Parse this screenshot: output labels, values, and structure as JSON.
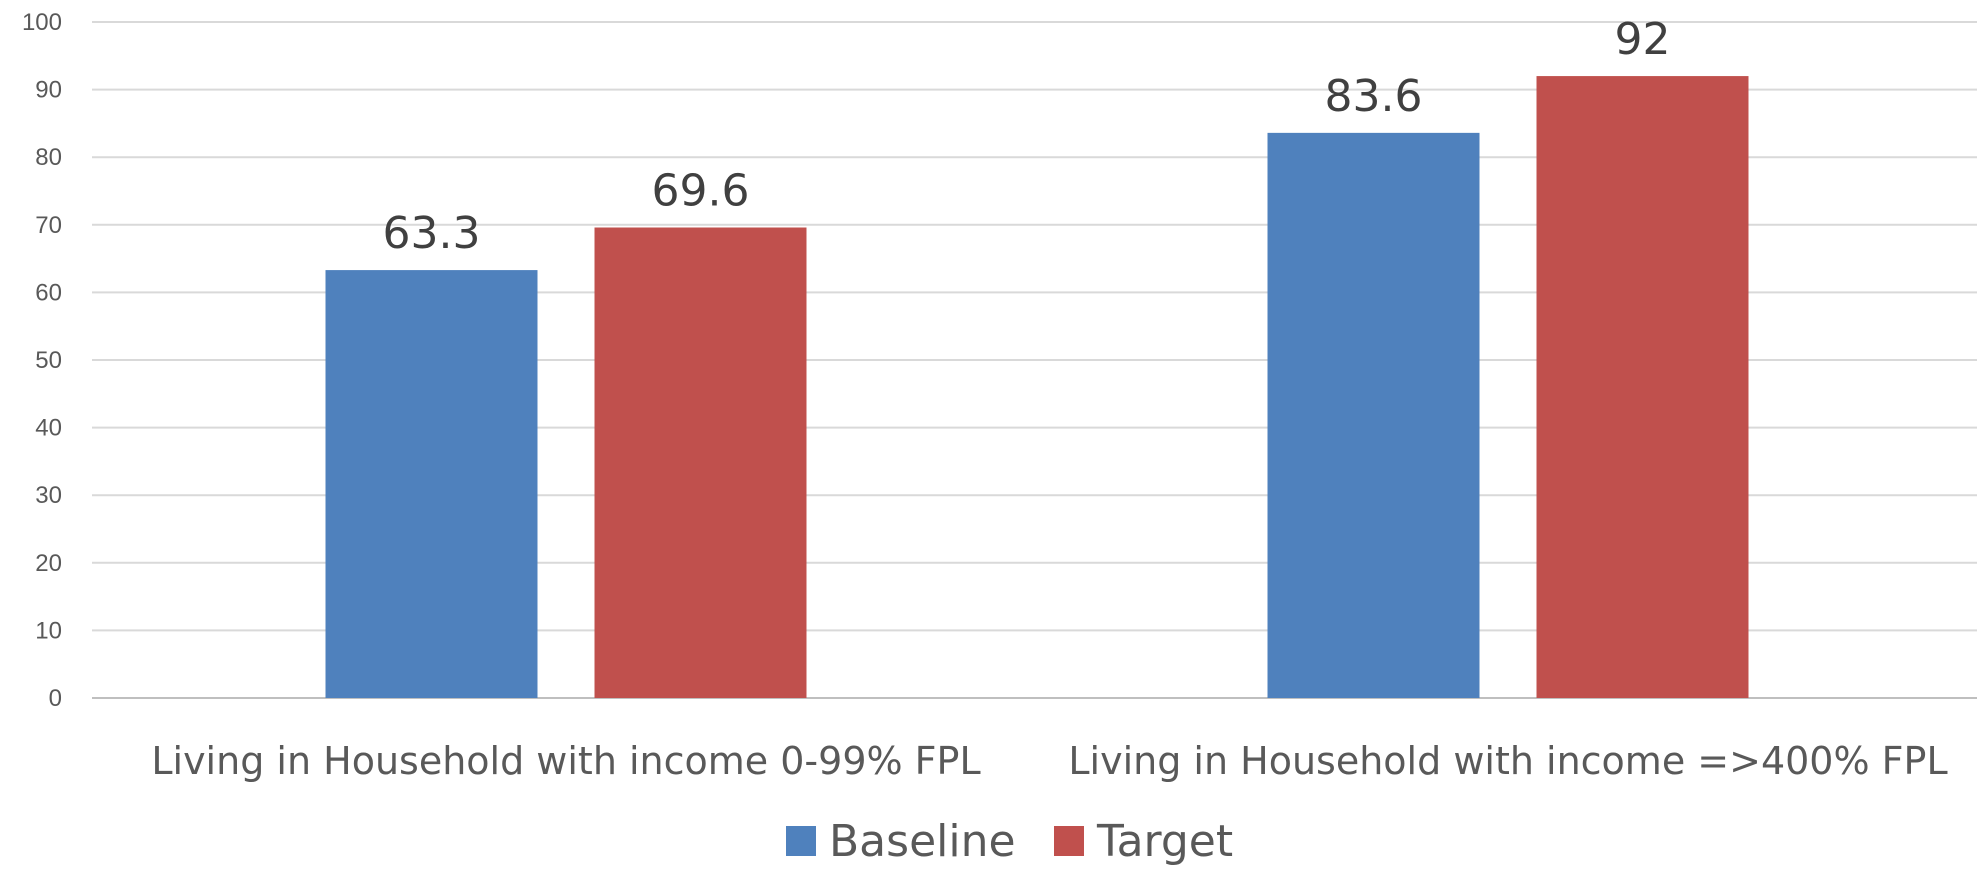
{
  "chart_data": {
    "type": "bar",
    "categories": [
      "Living in Household with income 0-99% FPL",
      "Living in Household with income =>400% FPL"
    ],
    "series": [
      {
        "name": "Baseline",
        "values": [
          63.3,
          83.6
        ],
        "color": "#4F81BD"
      },
      {
        "name": "Target",
        "values": [
          69.6,
          92
        ],
        "color": "#C0504D"
      }
    ],
    "data_labels": [
      [
        "63.3",
        "83.6"
      ],
      [
        "69.6",
        "92"
      ]
    ],
    "yticks": [
      0,
      10,
      20,
      30,
      40,
      50,
      60,
      70,
      80,
      90,
      100
    ],
    "ylim": [
      0,
      100
    ],
    "grid": true,
    "legend_position": "bottom",
    "title": "",
    "xlabel": "",
    "ylabel": ""
  }
}
